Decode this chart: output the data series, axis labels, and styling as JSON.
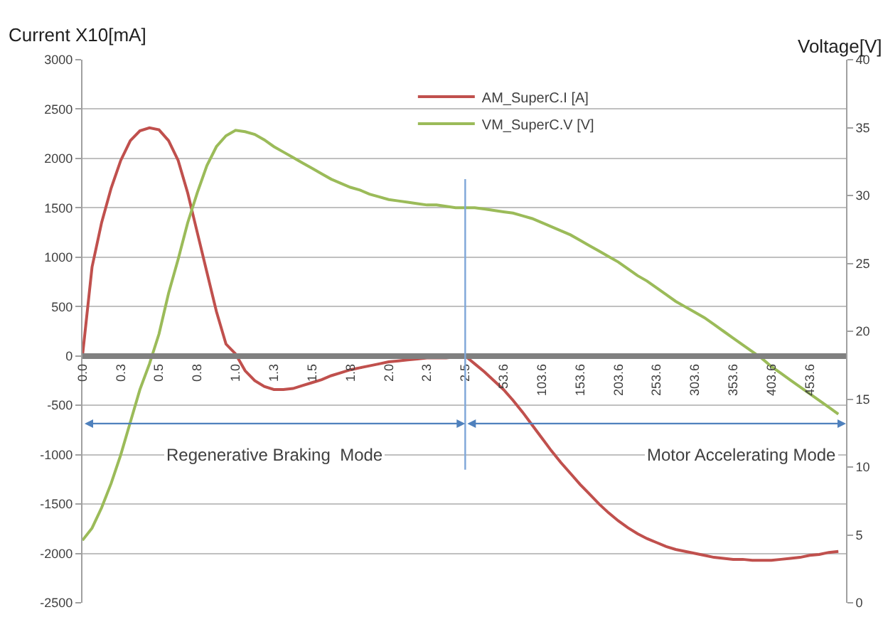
{
  "chart_data": {
    "type": "line",
    "ylabel": "Current X10[mA]",
    "y2label": "Voltage[V]",
    "categories": [
      "0.0",
      null,
      null,
      null,
      "0.3",
      null,
      null,
      null,
      "0.5",
      null,
      null,
      null,
      "0.8",
      null,
      null,
      null,
      "1.0",
      null,
      null,
      null,
      "1.3",
      null,
      null,
      null,
      "1.5",
      null,
      null,
      null,
      "1.8",
      null,
      null,
      null,
      "2.0",
      null,
      null,
      null,
      "2.3",
      null,
      null,
      null,
      "2.5",
      null,
      null,
      null,
      "53.6",
      null,
      null,
      null,
      "103.6",
      null,
      null,
      null,
      "153.6",
      null,
      null,
      null,
      "203.6",
      null,
      null,
      null,
      "253.6",
      null,
      null,
      null,
      "303.6",
      null,
      null,
      null,
      "353.6",
      null,
      null,
      null,
      "403.6",
      null,
      null,
      null,
      "453.6",
      null,
      null,
      null
    ],
    "series": [
      {
        "name": "AM_SuperC.I [A]",
        "color": "#c0504d",
        "values": [
          0,
          900,
          1350,
          1700,
          1980,
          2180,
          2280,
          2310,
          2290,
          2180,
          1980,
          1650,
          1250,
          850,
          450,
          120,
          20,
          -150,
          -250,
          -310,
          -340,
          -340,
          -330,
          -300,
          -270,
          -240,
          -200,
          -170,
          -140,
          -120,
          -100,
          -80,
          -60,
          -50,
          -40,
          -30,
          -20,
          -20,
          -20,
          -10,
          0,
          -80,
          -160,
          -250,
          -340,
          -450,
          -570,
          -700,
          -830,
          -960,
          -1080,
          -1190,
          -1300,
          -1400,
          -1500,
          -1590,
          -1670,
          -1740,
          -1800,
          -1850,
          -1890,
          -1930,
          -1960,
          -1980,
          -2000,
          -2020,
          -2040,
          -2050,
          -2060,
          -2060,
          -2070,
          -2070,
          -2070,
          -2060,
          -2050,
          -2040,
          -2020,
          -2010,
          -1990,
          -1980
        ]
      },
      {
        "name": "VM_SuperC.V [V]",
        "color": "#9bbb59",
        "axis": "y2",
        "values": [
          4.6,
          5.5,
          7.0,
          8.8,
          10.9,
          13.3,
          15.7,
          17.6,
          19.8,
          22.8,
          25.3,
          28.0,
          30.2,
          32.2,
          33.6,
          34.4,
          34.8,
          34.7,
          34.5,
          34.1,
          33.6,
          33.2,
          32.8,
          32.4,
          32.0,
          31.6,
          31.2,
          30.9,
          30.6,
          30.4,
          30.1,
          29.9,
          29.7,
          29.6,
          29.5,
          29.4,
          29.3,
          29.3,
          29.2,
          29.1,
          29.1,
          29.1,
          29.0,
          28.9,
          28.8,
          28.7,
          28.5,
          28.3,
          28.0,
          27.7,
          27.4,
          27.1,
          26.7,
          26.3,
          25.9,
          25.5,
          25.1,
          24.6,
          24.1,
          23.7,
          23.2,
          22.7,
          22.2,
          21.8,
          21.4,
          21.0,
          20.5,
          20.0,
          19.5,
          19.0,
          18.5,
          18.0,
          17.4,
          16.9,
          16.4,
          15.9,
          15.4,
          14.9,
          14.4,
          13.9
        ]
      }
    ],
    "ylim": [
      -2500,
      3000
    ],
    "yticks": [
      -2500,
      -2000,
      -1500,
      -1000,
      -500,
      0,
      500,
      1000,
      1500,
      2000,
      2500,
      3000
    ],
    "y2lim": [
      0,
      40
    ],
    "y2ticks": [
      0,
      5,
      10,
      15,
      20,
      25,
      30,
      35,
      40
    ],
    "ref_lines": [
      {
        "axis": "x",
        "value": "2.5",
        "color": "#7ea6d8"
      }
    ],
    "annotations": [
      "Regenerative Braking  Mode",
      "Motor Accelerating Mode"
    ],
    "grid": "y",
    "legend": "top",
    "marker": "none",
    "line_style": "solid"
  }
}
